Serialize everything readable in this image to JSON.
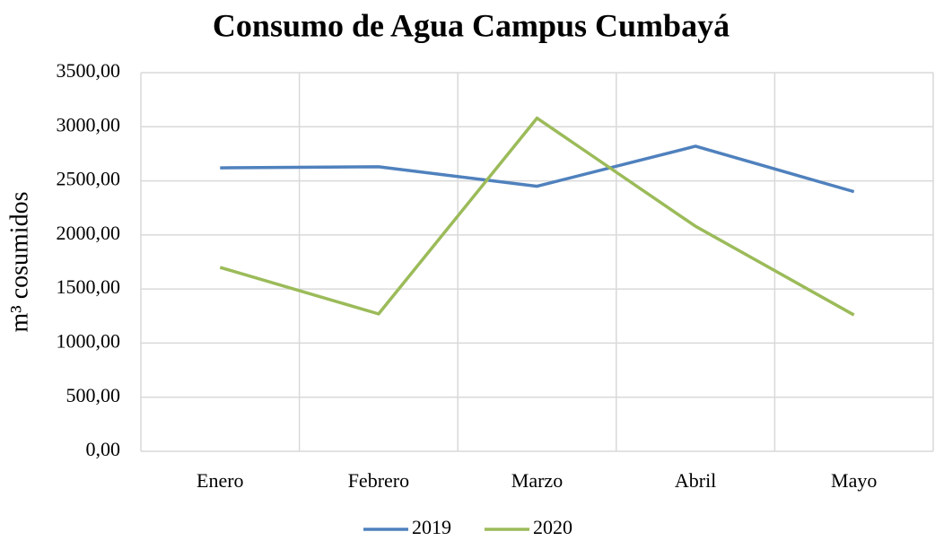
{
  "chart_data": {
    "type": "line",
    "title": "Consumo de Agua Campus Cumbayá",
    "y_label": "m³ cosumidos",
    "categories": [
      "Enero",
      "Febrero",
      "Marzo",
      "Abril",
      "Mayo"
    ],
    "series": [
      {
        "name": "2019",
        "color": "#4f81bd",
        "values": [
          2620,
          2630,
          2450,
          2820,
          2400
        ]
      },
      {
        "name": "2020",
        "color": "#9bbb59",
        "values": [
          1700,
          1270,
          3080,
          2080,
          1260
        ]
      }
    ],
    "ylim": [
      0,
      3500
    ],
    "yticks": [
      {
        "value": 0,
        "label": "0,00"
      },
      {
        "value": 500,
        "label": "500,00"
      },
      {
        "value": 1000,
        "label": "1000,00"
      },
      {
        "value": 1500,
        "label": "1500,00"
      },
      {
        "value": 2000,
        "label": "2000,00"
      },
      {
        "value": 2500,
        "label": "2500,00"
      },
      {
        "value": 3000,
        "label": "3000,00"
      },
      {
        "value": 3500,
        "label": "3500,00"
      }
    ],
    "grid": true,
    "legend": "bottom"
  }
}
